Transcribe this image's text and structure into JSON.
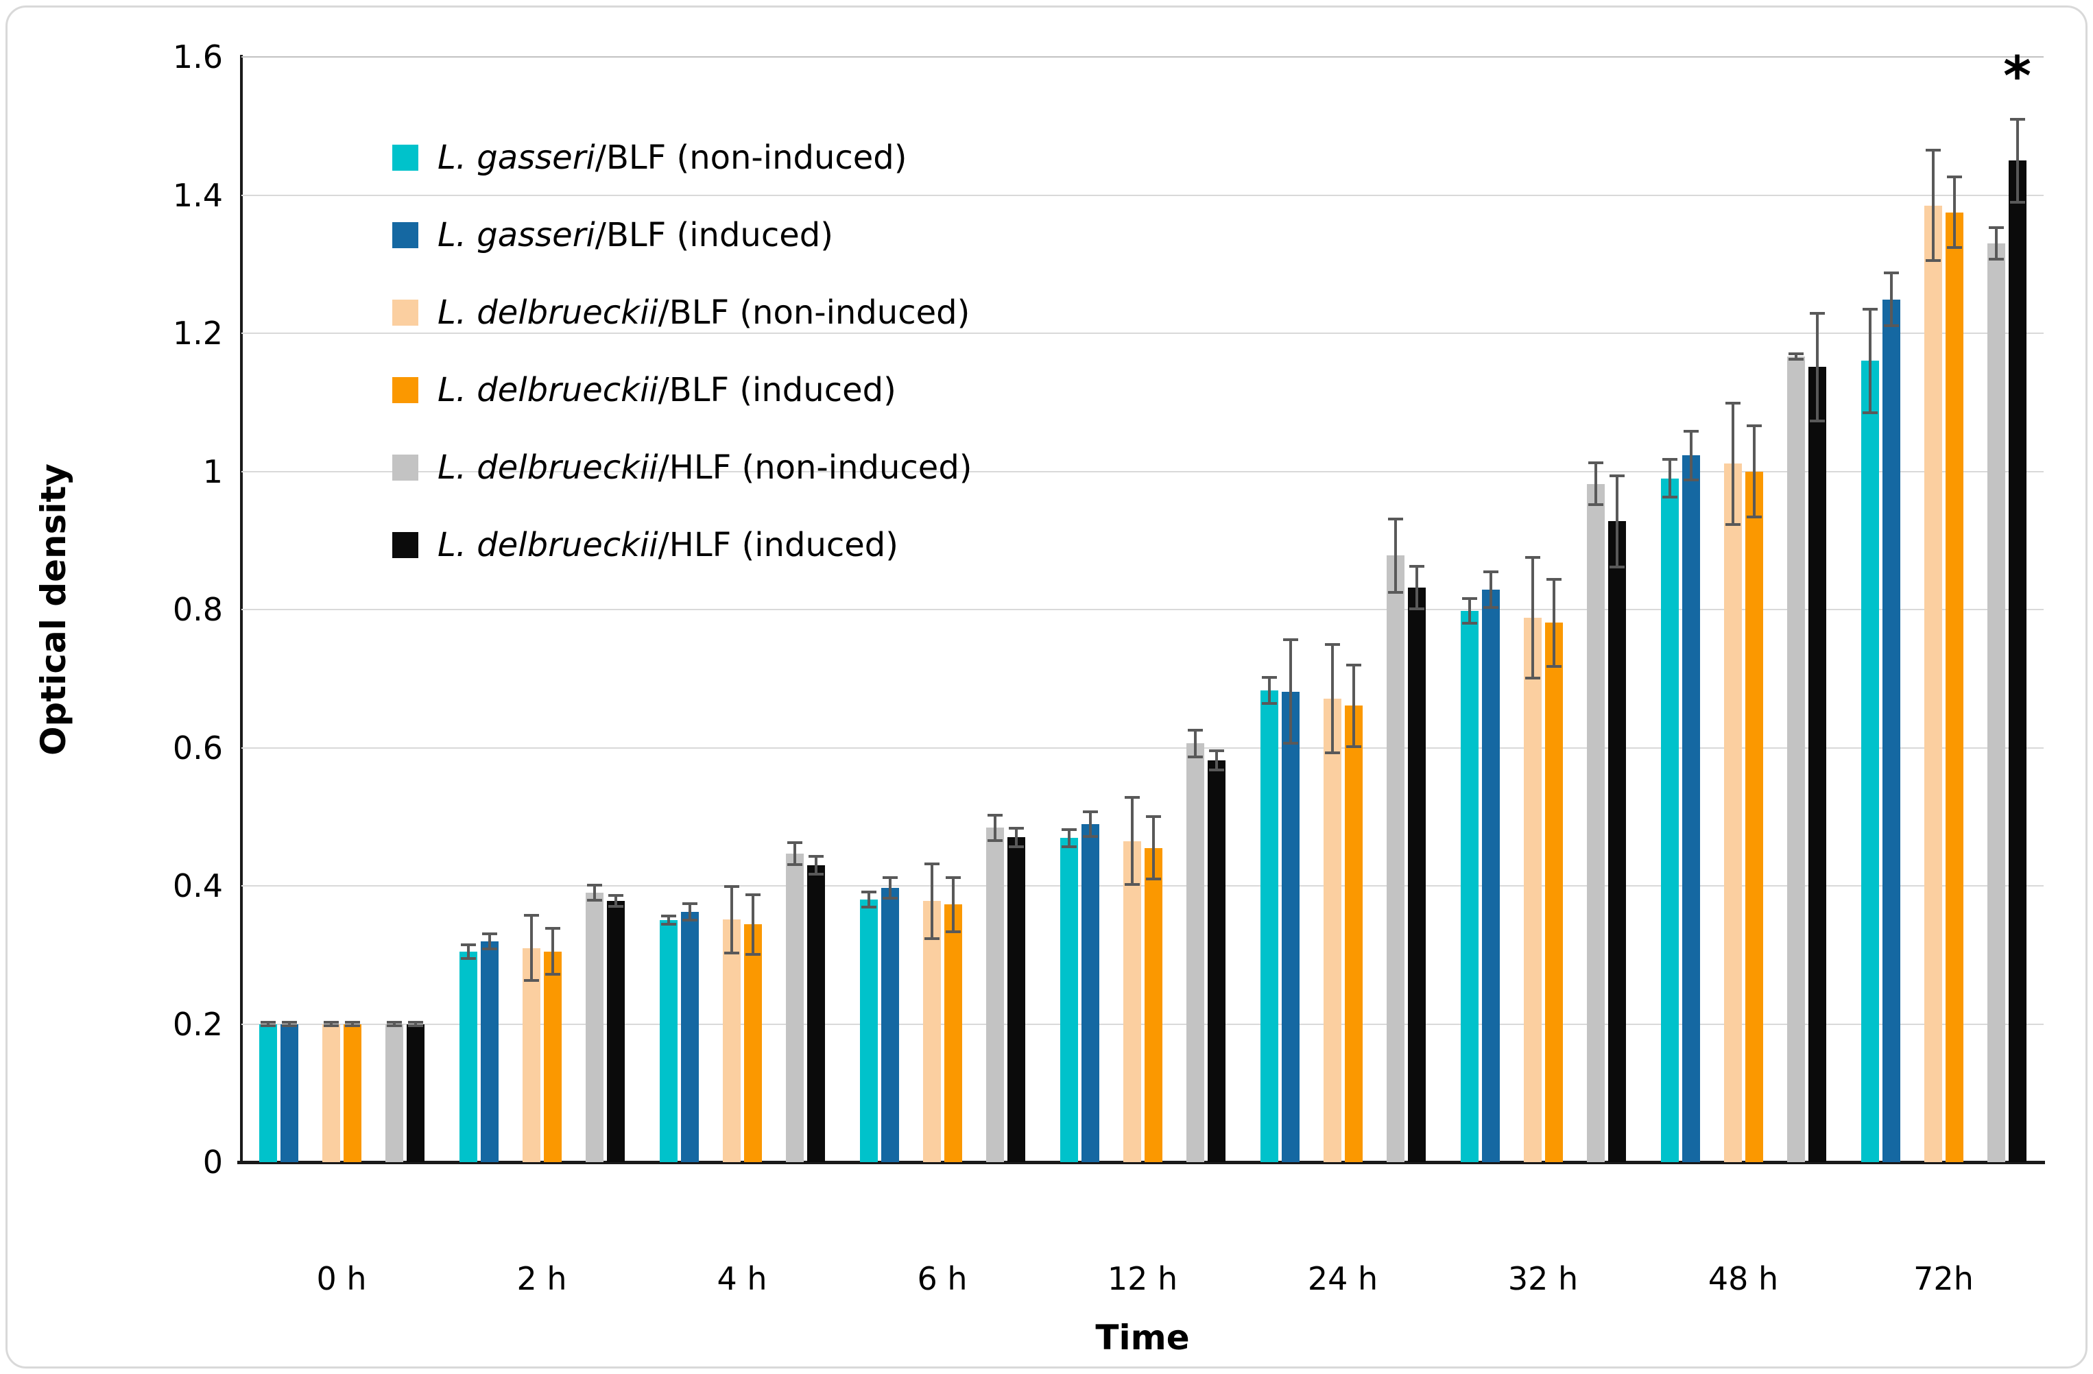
{
  "figure": {
    "y_axis_title": "Optical density",
    "x_axis_title": "Time"
  },
  "chart_data": {
    "type": "bar",
    "title": "",
    "xlabel": "Time",
    "ylabel": "Optical density",
    "ylim": [
      0,
      1.6
    ],
    "ytick_step": 0.2,
    "ytick_labels": [
      "0",
      "0.2",
      "0.4",
      "0.6",
      "0.8",
      "1",
      "1.2",
      "1.4",
      "1.6"
    ],
    "grid": true,
    "legend_position": "upper-left-inside",
    "error_bar_color": "#595959",
    "categories": [
      "0 h",
      "2 h",
      "4 h",
      "6 h",
      "12 h",
      "24 h",
      "32 h",
      "48 h",
      "72h"
    ],
    "series": [
      {
        "name": "L. gasseri/BLF (non-induced)",
        "legend_species": "L. gasseri",
        "legend_rest": "/BLF (non-induced)",
        "color": "#00C2CB",
        "values": [
          0.2,
          0.305,
          0.35,
          0.38,
          0.469,
          0.683,
          0.798,
          0.99,
          1.16
        ],
        "errors": [
          0.004,
          0.012,
          0.008,
          0.013,
          0.014,
          0.021,
          0.02,
          0.029,
          0.077
        ]
      },
      {
        "name": "L. gasseri/BLF (induced)",
        "legend_species": "L. gasseri",
        "legend_rest": "/BLF (induced)",
        "color": "#1568A2",
        "values": [
          0.2,
          0.32,
          0.362,
          0.397,
          0.489,
          0.681,
          0.829,
          1.023,
          1.249
        ],
        "errors": [
          0.004,
          0.013,
          0.014,
          0.017,
          0.02,
          0.077,
          0.028,
          0.037,
          0.04
        ]
      },
      {
        "name": "L. delbrueckii/BLF (non-induced)",
        "legend_species": "L. delbrueckii",
        "legend_rest": "/BLF (non-induced)",
        "color": "#FBCFA0",
        "values": [
          0.2,
          0.31,
          0.351,
          0.378,
          0.465,
          0.671,
          0.788,
          1.011,
          1.385
        ],
        "errors": [
          0.004,
          0.049,
          0.05,
          0.056,
          0.065,
          0.08,
          0.089,
          0.09,
          0.082
        ]
      },
      {
        "name": "L. delbrueckii/BLF (induced)",
        "legend_species": "L. delbrueckii",
        "legend_rest": "/BLF (induced)",
        "color": "#FB9800",
        "values": [
          0.2,
          0.305,
          0.344,
          0.373,
          0.455,
          0.661,
          0.781,
          1.0,
          1.375
        ],
        "errors": [
          0.004,
          0.035,
          0.045,
          0.041,
          0.047,
          0.061,
          0.065,
          0.068,
          0.053
        ]
      },
      {
        "name": "L. delbrueckii/HLF (non-induced)",
        "legend_species": "L. delbrueckii",
        "legend_rest": "/HLF (non-induced)",
        "color": "#C3C3C3",
        "values": [
          0.2,
          0.39,
          0.447,
          0.484,
          0.606,
          0.878,
          0.982,
          1.166,
          1.33
        ],
        "errors": [
          0.004,
          0.013,
          0.018,
          0.02,
          0.021,
          0.055,
          0.032,
          0.006,
          0.025
        ]
      },
      {
        "name": "L. delbrueckii/HLF (induced)",
        "legend_species": "L. delbrueckii",
        "legend_rest": "/HLF (induced)",
        "color": "#0B0B0B",
        "values": [
          0.2,
          0.378,
          0.43,
          0.47,
          0.582,
          0.832,
          0.928,
          1.151,
          1.45
        ],
        "errors": [
          0.004,
          0.01,
          0.015,
          0.015,
          0.016,
          0.033,
          0.068,
          0.08,
          0.062
        ],
        "annotation": {
          "category_index": 8,
          "text": "*"
        }
      }
    ]
  }
}
